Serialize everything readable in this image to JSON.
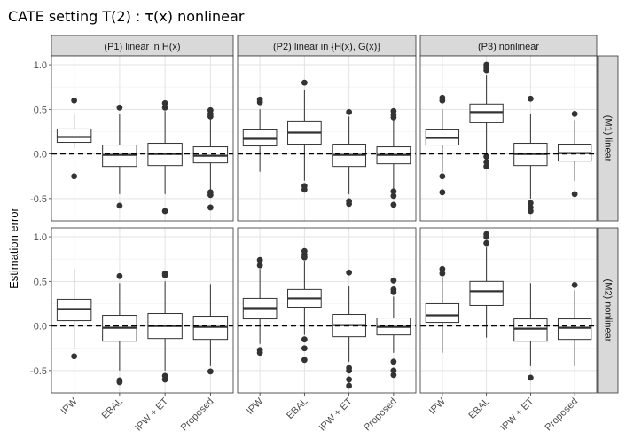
{
  "chart_data": {
    "type": "boxplot",
    "title": "CATE setting T(2) :  τ(x) nonlinear",
    "ylabel": "Estimation error",
    "xlabel": "",
    "ylim": [
      -0.75,
      1.1
    ],
    "yticks": [
      -0.5,
      0.0,
      0.5,
      1.0
    ],
    "ytick_labels": [
      "-0.5",
      "0.0",
      "0.5",
      "1.0"
    ],
    "categories": [
      "IPW",
      "EBAL",
      "IPW + ET",
      "Proposed"
    ],
    "columns": [
      "(P1) linear in H(x)",
      "(P2) linear in {H(x), G(x)}",
      "(P3) nonlinear"
    ],
    "rows": [
      "(M1) linear",
      "(M2) nonlinear"
    ],
    "reference_line": 0.0,
    "grid": true,
    "panels": [
      {
        "row": 0,
        "col": 0,
        "boxes": [
          {
            "category": "IPW",
            "whisker_low": 0.07,
            "q1": 0.13,
            "median": 0.19,
            "q3": 0.28,
            "whisker_high": 0.45,
            "outliers": [
              0.6,
              -0.25
            ]
          },
          {
            "category": "EBAL",
            "whisker_low": -0.45,
            "q1": -0.14,
            "median": -0.01,
            "q3": 0.1,
            "whisker_high": 0.45,
            "outliers": [
              0.52,
              -0.58
            ]
          },
          {
            "category": "IPW + ET",
            "whisker_low": -0.45,
            "q1": -0.13,
            "median": 0.0,
            "q3": 0.12,
            "whisker_high": 0.48,
            "outliers": [
              0.57,
              0.52,
              -0.64
            ]
          },
          {
            "category": "Proposed",
            "whisker_low": -0.4,
            "q1": -0.1,
            "median": -0.02,
            "q3": 0.08,
            "whisker_high": 0.4,
            "outliers": [
              0.49,
              0.45,
              0.42,
              -0.43,
              -0.46,
              -0.6
            ]
          }
        ]
      },
      {
        "row": 0,
        "col": 1,
        "boxes": [
          {
            "category": "IPW",
            "whisker_low": -0.2,
            "q1": 0.09,
            "median": 0.17,
            "q3": 0.27,
            "whisker_high": 0.5,
            "outliers": [
              0.61,
              0.58
            ]
          },
          {
            "category": "EBAL",
            "whisker_low": -0.3,
            "q1": 0.11,
            "median": 0.24,
            "q3": 0.37,
            "whisker_high": 0.72,
            "outliers": [
              0.8,
              -0.36,
              -0.4
            ]
          },
          {
            "category": "IPW + ET",
            "whisker_low": -0.45,
            "q1": -0.14,
            "median": -0.01,
            "q3": 0.11,
            "whisker_high": 0.42,
            "outliers": [
              0.47,
              -0.53,
              -0.56
            ]
          },
          {
            "category": "Proposed",
            "whisker_low": -0.4,
            "q1": -0.11,
            "median": -0.01,
            "q3": 0.08,
            "whisker_high": 0.38,
            "outliers": [
              0.48,
              0.44,
              0.41,
              -0.42,
              -0.47,
              -0.57
            ]
          }
        ]
      },
      {
        "row": 0,
        "col": 2,
        "boxes": [
          {
            "category": "IPW",
            "whisker_low": -0.2,
            "q1": 0.1,
            "median": 0.18,
            "q3": 0.27,
            "whisker_high": 0.5,
            "outliers": [
              0.63,
              0.6,
              -0.25,
              -0.43
            ]
          },
          {
            "category": "EBAL",
            "whisker_low": 0.0,
            "q1": 0.35,
            "median": 0.47,
            "q3": 0.56,
            "whisker_high": 0.88,
            "outliers": [
              1.0,
              0.97,
              0.94,
              -0.03,
              -0.09,
              -0.14
            ]
          },
          {
            "category": "IPW + ET",
            "whisker_low": -0.5,
            "q1": -0.13,
            "median": 0.0,
            "q3": 0.12,
            "whisker_high": 0.45,
            "outliers": [
              0.62,
              -0.55,
              -0.6,
              -0.64
            ]
          },
          {
            "category": "Proposed",
            "whisker_low": -0.3,
            "q1": -0.08,
            "median": 0.01,
            "q3": 0.11,
            "whisker_high": 0.38,
            "outliers": [
              0.45,
              -0.45
            ]
          }
        ]
      },
      {
        "row": 1,
        "col": 0,
        "boxes": [
          {
            "category": "IPW",
            "whisker_low": -0.25,
            "q1": 0.06,
            "median": 0.19,
            "q3": 0.3,
            "whisker_high": 0.64,
            "outliers": [
              -0.34
            ]
          },
          {
            "category": "EBAL",
            "whisker_low": -0.5,
            "q1": -0.17,
            "median": -0.02,
            "q3": 0.12,
            "whisker_high": 0.48,
            "outliers": [
              0.56,
              -0.61,
              -0.63
            ]
          },
          {
            "category": "IPW + ET",
            "whisker_low": -0.5,
            "q1": -0.14,
            "median": 0.0,
            "q3": 0.14,
            "whisker_high": 0.5,
            "outliers": [
              0.59,
              0.57,
              -0.56,
              -0.6
            ]
          },
          {
            "category": "Proposed",
            "whisker_low": -0.45,
            "q1": -0.15,
            "median": -0.01,
            "q3": 0.11,
            "whisker_high": 0.47,
            "outliers": [
              -0.51
            ]
          }
        ]
      },
      {
        "row": 1,
        "col": 1,
        "boxes": [
          {
            "category": "IPW",
            "whisker_low": -0.2,
            "q1": 0.08,
            "median": 0.2,
            "q3": 0.31,
            "whisker_high": 0.64,
            "outliers": [
              0.74,
              0.68,
              -0.27,
              -0.3
            ]
          },
          {
            "category": "EBAL",
            "whisker_low": -0.1,
            "q1": 0.21,
            "median": 0.31,
            "q3": 0.41,
            "whisker_high": 0.73,
            "outliers": [
              0.84,
              0.8,
              0.77,
              -0.15,
              -0.25,
              -0.38
            ]
          },
          {
            "category": "IPW + ET",
            "whisker_low": -0.4,
            "q1": -0.12,
            "median": 0.01,
            "q3": 0.13,
            "whisker_high": 0.45,
            "outliers": [
              0.6,
              -0.47,
              -0.5,
              -0.6,
              -0.67
            ]
          },
          {
            "category": "Proposed",
            "whisker_low": -0.3,
            "q1": -0.1,
            "median": -0.01,
            "q3": 0.09,
            "whisker_high": 0.33,
            "outliers": [
              0.51,
              0.41,
              0.38,
              -0.4,
              -0.5,
              -0.55
            ]
          }
        ]
      },
      {
        "row": 1,
        "col": 2,
        "boxes": [
          {
            "category": "IPW",
            "whisker_low": -0.3,
            "q1": 0.04,
            "median": 0.12,
            "q3": 0.25,
            "whisker_high": 0.55,
            "outliers": [
              0.64,
              0.59
            ]
          },
          {
            "category": "EBAL",
            "whisker_low": -0.13,
            "q1": 0.23,
            "median": 0.39,
            "q3": 0.5,
            "whisker_high": 0.88,
            "outliers": [
              1.03,
              1.0,
              0.93
            ]
          },
          {
            "category": "IPW + ET",
            "whisker_low": -0.45,
            "q1": -0.17,
            "median": -0.03,
            "q3": 0.08,
            "whisker_high": 0.48,
            "outliers": [
              -0.58
            ]
          },
          {
            "category": "Proposed",
            "whisker_low": -0.45,
            "q1": -0.15,
            "median": -0.02,
            "q3": 0.08,
            "whisker_high": 0.4,
            "outliers": [
              0.46
            ]
          }
        ]
      }
    ]
  }
}
